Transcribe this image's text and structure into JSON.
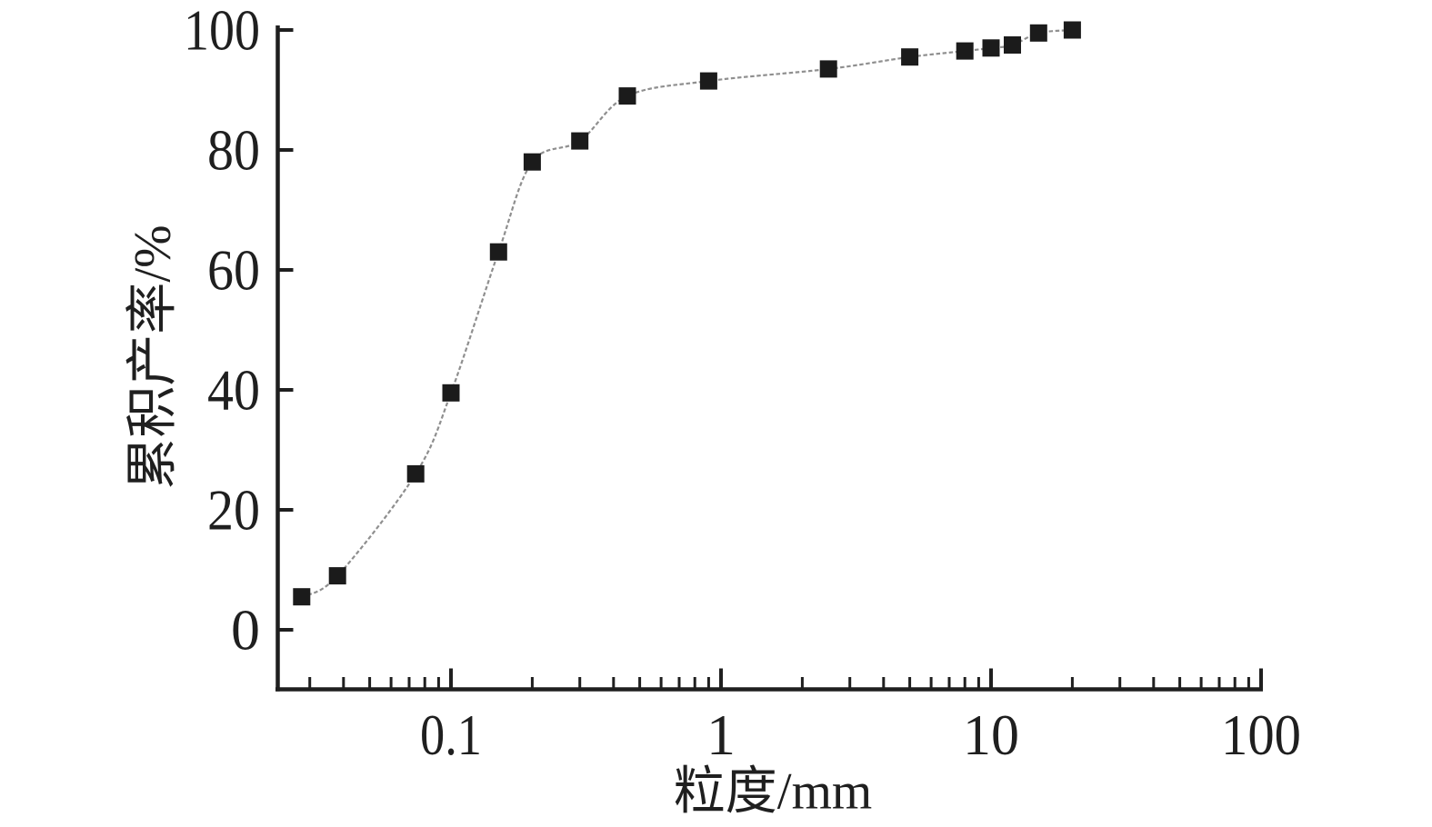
{
  "chart_data": {
    "type": "line",
    "title": "",
    "xlabel": "粒度/mm",
    "ylabel": "累积产率/%",
    "x_scale": "log",
    "xlim": [
      0.023,
      100
    ],
    "ylim": [
      0,
      100
    ],
    "x_ticks": [
      0.1,
      1,
      10,
      100
    ],
    "x_tick_labels": [
      "0.1",
      "1",
      "10",
      "100"
    ],
    "y_ticks": [
      0,
      20,
      40,
      60,
      80,
      100
    ],
    "y_tick_labels": [
      "0",
      "20",
      "40",
      "60",
      "80",
      "100"
    ],
    "grid": false,
    "legend": false,
    "series": [
      {
        "name": "累积产率",
        "marker": "square",
        "marker_color": "#1b1b1b",
        "line_color": "#8f8f8f",
        "line_style": "dashed",
        "points": [
          [
            0.028,
            5.5
          ],
          [
            0.038,
            9
          ],
          [
            0.074,
            26
          ],
          [
            0.1,
            39.5
          ],
          [
            0.15,
            63
          ],
          [
            0.2,
            78
          ],
          [
            0.3,
            81.5
          ],
          [
            0.45,
            89
          ],
          [
            0.9,
            91.5
          ],
          [
            2.5,
            93.5
          ],
          [
            5,
            95.5
          ],
          [
            8,
            96.5
          ],
          [
            10,
            97
          ],
          [
            12,
            97.5
          ],
          [
            15,
            99.5
          ],
          [
            20,
            100
          ]
        ]
      }
    ],
    "colors": {
      "axis": "#1f1f1f",
      "background": "#ffffff"
    }
  }
}
